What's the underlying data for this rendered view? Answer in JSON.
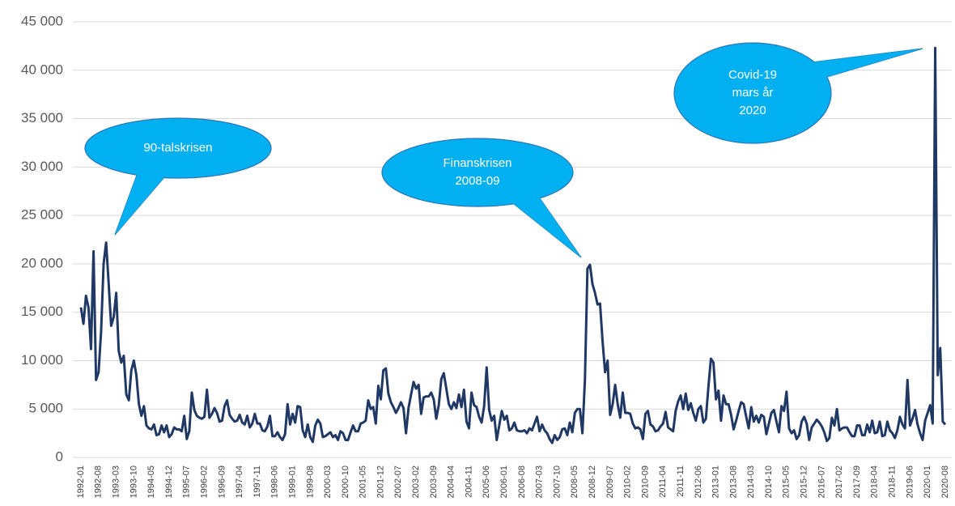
{
  "chart_data": {
    "type": "line",
    "annotations": [
      [
        "90-talskrisen"
      ],
      [
        "Finanskrisen",
        "2008-09"
      ],
      [
        "Covid-19",
        "mars år",
        "2020"
      ]
    ],
    "categories": [
      "1992-01",
      null,
      null,
      null,
      null,
      null,
      null,
      "1992-08",
      null,
      null,
      null,
      null,
      null,
      null,
      "1993-03",
      null,
      null,
      null,
      null,
      null,
      null,
      "1993-10",
      null,
      null,
      null,
      null,
      null,
      null,
      "1994-05",
      null,
      null,
      null,
      null,
      null,
      null,
      "1994-12",
      null,
      null,
      null,
      null,
      null,
      null,
      "1995-07",
      null,
      null,
      null,
      null,
      null,
      null,
      "1996-02",
      null,
      null,
      null,
      null,
      null,
      null,
      "1996-09",
      null,
      null,
      null,
      null,
      null,
      null,
      "1997-04",
      null,
      null,
      null,
      null,
      null,
      null,
      "1997-11",
      null,
      null,
      null,
      null,
      null,
      null,
      "1998-06",
      null,
      null,
      null,
      null,
      null,
      null,
      "1999-01",
      null,
      null,
      null,
      null,
      null,
      null,
      "1999-08",
      null,
      null,
      null,
      null,
      null,
      null,
      "2000-03",
      null,
      null,
      null,
      null,
      null,
      null,
      "2000-10",
      null,
      null,
      null,
      null,
      null,
      null,
      "2001-05",
      null,
      null,
      null,
      null,
      null,
      null,
      "2001-12",
      null,
      null,
      null,
      null,
      null,
      null,
      "2002-07",
      null,
      null,
      null,
      null,
      null,
      null,
      "2003-02",
      null,
      null,
      null,
      null,
      null,
      null,
      "2003-09",
      null,
      null,
      null,
      null,
      null,
      null,
      "2004-04",
      null,
      null,
      null,
      null,
      null,
      null,
      "2004-11",
      null,
      null,
      null,
      null,
      null,
      null,
      "2005-06",
      null,
      null,
      null,
      null,
      null,
      null,
      "2006-01",
      null,
      null,
      null,
      null,
      null,
      null,
      "2006-08",
      null,
      null,
      null,
      null,
      null,
      null,
      "2007-03",
      null,
      null,
      null,
      null,
      null,
      null,
      "2007-10",
      null,
      null,
      null,
      null,
      null,
      null,
      "2008-05",
      null,
      null,
      null,
      null,
      null,
      null,
      "2008-12",
      null,
      null,
      null,
      null,
      null,
      null,
      "2009-07",
      null,
      null,
      null,
      null,
      null,
      null,
      "2010-02",
      null,
      null,
      null,
      null,
      null,
      null,
      "2010-09",
      null,
      null,
      null,
      null,
      null,
      null,
      "2011-04",
      null,
      null,
      null,
      null,
      null,
      null,
      "2011-11",
      null,
      null,
      null,
      null,
      null,
      null,
      "2012-06",
      null,
      null,
      null,
      null,
      null,
      null,
      "2013-01",
      null,
      null,
      null,
      null,
      null,
      null,
      "2013-08",
      null,
      null,
      null,
      null,
      null,
      null,
      "2014-03",
      null,
      null,
      null,
      null,
      null,
      null,
      "2014-10",
      null,
      null,
      null,
      null,
      null,
      null,
      "2015-05",
      null,
      null,
      null,
      null,
      null,
      null,
      "2015-12",
      null,
      null,
      null,
      null,
      null,
      null,
      "2016-07",
      null,
      null,
      null,
      null,
      null,
      null,
      "2017-02",
      null,
      null,
      null,
      null,
      null,
      null,
      "2017-09",
      null,
      null,
      null,
      null,
      null,
      null,
      "2018-04",
      null,
      null,
      null,
      null,
      null,
      null,
      "2018-11",
      null,
      null,
      null,
      null,
      null,
      null,
      "2019-06",
      null,
      null,
      null,
      null,
      null,
      null,
      "2020-01",
      null,
      null,
      null,
      null,
      null,
      null,
      "2020-08"
    ],
    "values": [
      15500,
      13800,
      16700,
      15500,
      11200,
      21300,
      8000,
      8800,
      13000,
      20000,
      22200,
      18000,
      13600,
      14500,
      17000,
      11000,
      9800,
      10500,
      6500,
      5900,
      9000,
      10000,
      8500,
      5500,
      4300,
      5300,
      3300,
      3000,
      2900,
      3400,
      2300,
      2400,
      3300,
      2600,
      3300,
      2100,
      2400,
      3100,
      2900,
      2900,
      2700,
      4300,
      1900,
      2700,
      6700,
      4900,
      4300,
      4100,
      4000,
      4200,
      7000,
      4100,
      4500,
      5100,
      4600,
      3700,
      3800,
      5300,
      5900,
      4400,
      4000,
      3700,
      3800,
      4400,
      3600,
      3400,
      4300,
      3100,
      3500,
      4500,
      3500,
      3500,
      2800,
      2700,
      3200,
      4300,
      2200,
      2200,
      2600,
      2100,
      1800,
      2400,
      5500,
      3400,
      4500,
      3600,
      5300,
      5200,
      2800,
      2100,
      3400,
      2100,
      1600,
      3300,
      3900,
      3500,
      2100,
      2200,
      2400,
      2600,
      2100,
      2300,
      1800,
      2700,
      2500,
      1800,
      1800,
      2600,
      3300,
      2700,
      2700,
      3500,
      3600,
      3800,
      5900,
      5000,
      5200,
      3500,
      7400,
      6000,
      9000,
      9200,
      6600,
      5700,
      5200,
      4600,
      5100,
      5700,
      5100,
      2500,
      5100,
      6500,
      7800,
      7100,
      7500,
      4500,
      6200,
      6300,
      6300,
      6700,
      6000,
      4000,
      5400,
      8100,
      8700,
      7100,
      5500,
      5000,
      5700,
      5100,
      6500,
      5200,
      7000,
      3700,
      3000,
      6700,
      5400,
      5200,
      4200,
      3600,
      5300,
      9300,
      4900,
      3800,
      4300,
      1800,
      3300,
      4800,
      3900,
      4300,
      2800,
      3000,
      3600,
      2800,
      2700,
      2700,
      2800,
      2500,
      3000,
      2800,
      3500,
      4200,
      2700,
      3400,
      2800,
      2500,
      1900,
      1500,
      2300,
      1800,
      2100,
      2900,
      3000,
      2300,
      3600,
      2600,
      4600,
      5000,
      5000,
      2500,
      8000,
      19500,
      19900,
      17900,
      17000,
      15800,
      15900,
      12000,
      8800,
      10000,
      4400,
      5500,
      7500,
      5500,
      4100,
      6700,
      4600,
      4600,
      4500,
      3500,
      3000,
      3100,
      2900,
      1900,
      4500,
      4800,
      3400,
      3200,
      2700,
      2800,
      3200,
      3500,
      4700,
      3100,
      2900,
      2700,
      4800,
      5800,
      6400,
      5000,
      6600,
      4900,
      5600,
      4600,
      3800,
      5000,
      5300,
      3600,
      4000,
      7300,
      10200,
      9800,
      6000,
      6900,
      3800,
      6400,
      5500,
      5500,
      4400,
      2900,
      3800,
      4800,
      5700,
      5500,
      4200,
      3000,
      5200,
      3700,
      4300,
      3600,
      4400,
      4200,
      2400,
      3500,
      4600,
      4900,
      3700,
      2600,
      5300,
      4800,
      6800,
      3000,
      2500,
      2800,
      1900,
      2300,
      3700,
      4200,
      3500,
      1800,
      3100,
      3500,
      3900,
      3600,
      3200,
      2600,
      1700,
      2000,
      4100,
      3300,
      5000,
      2800,
      3000,
      3100,
      3100,
      2600,
      2200,
      2200,
      3300,
      3300,
      2300,
      2300,
      3400,
      2600,
      3800,
      2500,
      2600,
      3700,
      2200,
      2300,
      3700,
      2800,
      2500,
      2000,
      2800,
      4200,
      3400,
      3000,
      8000,
      3300,
      4000,
      4900,
      3400,
      2500,
      1800,
      3800,
      4600,
      5400,
      3500,
      42300,
      8500,
      11300,
      3700,
      3400
    ],
    "color": "#203864",
    "ylim": [
      0,
      45000
    ],
    "yticks": [
      0,
      {
        "value": 5000,
        "label": "5 000"
      },
      {
        "value": 10000,
        "label": "10 000"
      },
      {
        "value": 15000,
        "label": "15 000"
      },
      {
        "value": 20000,
        "label": "20 000"
      },
      {
        "value": 25000,
        "label": "25 000"
      },
      {
        "value": 30000,
        "label": "30 000"
      },
      {
        "value": 35000,
        "label": "35 000"
      },
      {
        "value": 40000,
        "label": "40 000"
      },
      {
        "value": 45000,
        "label": "45 000"
      }
    ],
    "grid": true
  }
}
